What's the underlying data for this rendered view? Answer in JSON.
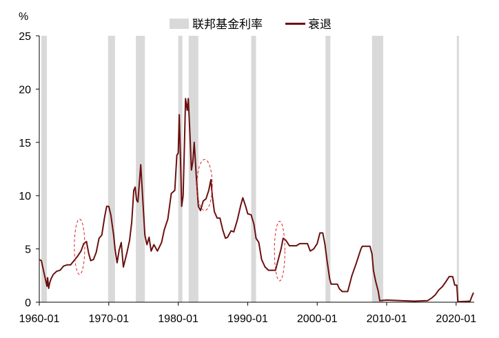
{
  "chart_data": {
    "type": "line",
    "unit_label": "%",
    "legend": [
      {
        "name": "联邦基金利率",
        "color": "#d9d9d9",
        "kind": "band"
      },
      {
        "name": "衰退",
        "color": "#6b0f0f",
        "kind": "line"
      }
    ],
    "x_ticks": [
      "1960-01",
      "1970-01",
      "1980-01",
      "1990-01",
      "2000-01",
      "2010-01",
      "2020-01"
    ],
    "y_ticks": [
      0,
      5,
      10,
      15,
      20,
      25
    ],
    "ylim": [
      0,
      25
    ],
    "xlim": [
      1960.0,
      2022.6
    ],
    "shaded_periods": [
      [
        1960.3,
        1961.1
      ],
      [
        1969.9,
        1970.9
      ],
      [
        1973.9,
        1975.2
      ],
      [
        1980.0,
        1980.6
      ],
      [
        1981.5,
        1982.9
      ],
      [
        1990.5,
        1991.2
      ],
      [
        2001.2,
        2001.9
      ],
      [
        2007.9,
        2009.5
      ],
      [
        2020.1,
        2020.4
      ]
    ],
    "dashed_ovals": [
      {
        "x": 1965.8,
        "y": 5.2,
        "rx": 0.75,
        "ry": 2.6
      },
      {
        "x": 1983.8,
        "y": 11.0,
        "rx": 1.1,
        "ry": 2.4
      },
      {
        "x": 1994.6,
        "y": 4.8,
        "rx": 0.75,
        "ry": 2.8
      }
    ],
    "series": [
      {
        "name": "衰退",
        "color": "#6b0f0f",
        "points": [
          [
            1960.0,
            4.0
          ],
          [
            1960.3,
            3.9
          ],
          [
            1960.6,
            3.0
          ],
          [
            1960.9,
            2.1
          ],
          [
            1961.1,
            1.5
          ],
          [
            1961.2,
            2.3
          ],
          [
            1961.35,
            1.3
          ],
          [
            1961.5,
            1.8
          ],
          [
            1961.7,
            2.2
          ],
          [
            1962.0,
            2.6
          ],
          [
            1962.5,
            2.9
          ],
          [
            1963.0,
            3.0
          ],
          [
            1963.5,
            3.4
          ],
          [
            1964.0,
            3.5
          ],
          [
            1964.5,
            3.5
          ],
          [
            1965.0,
            3.9
          ],
          [
            1965.5,
            4.3
          ],
          [
            1966.0,
            4.8
          ],
          [
            1966.4,
            5.5
          ],
          [
            1966.8,
            5.7
          ],
          [
            1967.1,
            4.6
          ],
          [
            1967.4,
            3.9
          ],
          [
            1967.8,
            4.0
          ],
          [
            1968.2,
            4.7
          ],
          [
            1968.6,
            6.0
          ],
          [
            1969.0,
            6.3
          ],
          [
            1969.4,
            8.0
          ],
          [
            1969.7,
            9.0
          ],
          [
            1970.0,
            9.0
          ],
          [
            1970.3,
            8.2
          ],
          [
            1970.7,
            6.3
          ],
          [
            1970.9,
            5.0
          ],
          [
            1971.2,
            3.7
          ],
          [
            1971.5,
            4.9
          ],
          [
            1971.8,
            5.6
          ],
          [
            1972.1,
            3.3
          ],
          [
            1972.6,
            4.6
          ],
          [
            1973.0,
            5.8
          ],
          [
            1973.3,
            7.5
          ],
          [
            1973.6,
            10.5
          ],
          [
            1973.8,
            10.8
          ],
          [
            1974.0,
            9.6
          ],
          [
            1974.2,
            9.4
          ],
          [
            1974.6,
            12.9
          ],
          [
            1974.9,
            9.6
          ],
          [
            1975.2,
            6.3
          ],
          [
            1975.5,
            5.4
          ],
          [
            1975.8,
            6.1
          ],
          [
            1976.1,
            4.8
          ],
          [
            1976.5,
            5.4
          ],
          [
            1977.0,
            4.8
          ],
          [
            1977.6,
            5.6
          ],
          [
            1978.0,
            6.8
          ],
          [
            1978.5,
            7.8
          ],
          [
            1979.0,
            10.2
          ],
          [
            1979.5,
            10.5
          ],
          [
            1979.8,
            13.8
          ],
          [
            1980.0,
            14.0
          ],
          [
            1980.15,
            17.6
          ],
          [
            1980.35,
            13.0
          ],
          [
            1980.5,
            9.0
          ],
          [
            1980.7,
            10.0
          ],
          [
            1980.9,
            15.0
          ],
          [
            1981.05,
            19.1
          ],
          [
            1981.3,
            18.0
          ],
          [
            1981.45,
            19.1
          ],
          [
            1981.7,
            15.6
          ],
          [
            1981.9,
            12.4
          ],
          [
            1982.1,
            13.2
          ],
          [
            1982.3,
            15.0
          ],
          [
            1982.6,
            11.8
          ],
          [
            1982.9,
            9.0
          ],
          [
            1983.2,
            8.6
          ],
          [
            1983.6,
            9.5
          ],
          [
            1984.0,
            9.7
          ],
          [
            1984.4,
            10.5
          ],
          [
            1984.7,
            11.5
          ],
          [
            1984.9,
            10.0
          ],
          [
            1985.2,
            8.5
          ],
          [
            1985.6,
            7.9
          ],
          [
            1986.0,
            7.9
          ],
          [
            1986.4,
            6.8
          ],
          [
            1986.8,
            6.0
          ],
          [
            1987.1,
            6.1
          ],
          [
            1987.6,
            6.7
          ],
          [
            1988.0,
            6.6
          ],
          [
            1988.5,
            7.7
          ],
          [
            1989.0,
            9.1
          ],
          [
            1989.3,
            9.8
          ],
          [
            1989.7,
            9.0
          ],
          [
            1990.0,
            8.3
          ],
          [
            1990.5,
            8.2
          ],
          [
            1990.9,
            7.3
          ],
          [
            1991.2,
            6.0
          ],
          [
            1991.6,
            5.6
          ],
          [
            1992.0,
            4.0
          ],
          [
            1992.5,
            3.3
          ],
          [
            1993.0,
            3.0
          ],
          [
            1993.5,
            3.0
          ],
          [
            1994.0,
            3.0
          ],
          [
            1994.4,
            4.0
          ],
          [
            1994.8,
            5.0
          ],
          [
            1995.1,
            6.0
          ],
          [
            1995.5,
            5.8
          ],
          [
            1996.0,
            5.3
          ],
          [
            1996.5,
            5.3
          ],
          [
            1997.0,
            5.3
          ],
          [
            1997.5,
            5.5
          ],
          [
            1998.0,
            5.5
          ],
          [
            1998.6,
            5.5
          ],
          [
            1999.0,
            4.8
          ],
          [
            1999.5,
            5.0
          ],
          [
            2000.0,
            5.5
          ],
          [
            2000.4,
            6.5
          ],
          [
            2000.8,
            6.5
          ],
          [
            2001.1,
            5.5
          ],
          [
            2001.4,
            4.0
          ],
          [
            2001.8,
            2.2
          ],
          [
            2002.0,
            1.7
          ],
          [
            2002.9,
            1.7
          ],
          [
            2003.2,
            1.25
          ],
          [
            2003.6,
            1.0
          ],
          [
            2004.4,
            1.0
          ],
          [
            2005.0,
            2.5
          ],
          [
            2005.6,
            3.6
          ],
          [
            2006.3,
            5.0
          ],
          [
            2006.5,
            5.25
          ],
          [
            2007.6,
            5.25
          ],
          [
            2007.9,
            4.5
          ],
          [
            2008.1,
            3.0
          ],
          [
            2008.4,
            2.0
          ],
          [
            2008.8,
            1.0
          ],
          [
            2009.0,
            0.15
          ],
          [
            2010.0,
            0.2
          ],
          [
            2012.0,
            0.15
          ],
          [
            2014.0,
            0.1
          ],
          [
            2015.9,
            0.15
          ],
          [
            2016.5,
            0.4
          ],
          [
            2017.0,
            0.7
          ],
          [
            2017.5,
            1.15
          ],
          [
            2018.0,
            1.45
          ],
          [
            2018.5,
            1.9
          ],
          [
            2019.0,
            2.4
          ],
          [
            2019.5,
            2.4
          ],
          [
            2019.8,
            1.6
          ],
          [
            2020.1,
            1.6
          ],
          [
            2020.25,
            0.05
          ],
          [
            2021.5,
            0.08
          ],
          [
            2022.0,
            0.1
          ],
          [
            2022.3,
            0.6
          ],
          [
            2022.5,
            0.9
          ]
        ]
      }
    ]
  }
}
